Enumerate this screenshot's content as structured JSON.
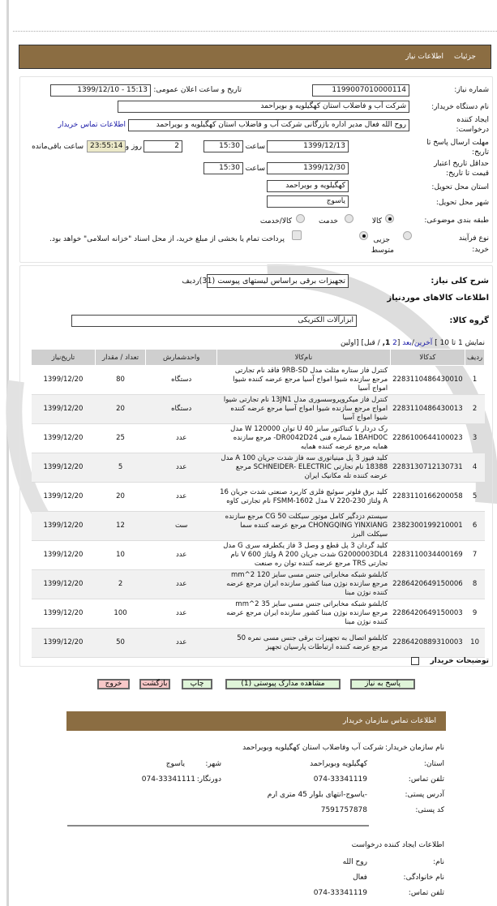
{
  "header": {
    "tab1": "جزئیات",
    "tab2": "اطلاعات نیاز"
  },
  "form": {
    "need_no_label": "شماره نیاز:",
    "need_no": "1199007010000114",
    "announce_label": "تاریخ و ساعت اعلان عمومی:",
    "announce": "1399/12/10 - 15:13",
    "buyer_label": "نام دستگاه خریدار:",
    "buyer": "شرکت آب و فاضلاب استان کهگیلویه و بویراحمد",
    "creator_label": "ایجاد کننده درخواست:",
    "creator": "روح الله فعال مدیر اداره بازرگانی شرکت آب و فاضلاب استان کهگیلویه و بویراحمد",
    "contact_link": "اطلاعات تماس خریدار",
    "deadline_label": "مهلت ارسال پاسخ تا تاریخ:",
    "deadline_date": "1399/12/13",
    "time_label": "ساعت",
    "deadline_time": "15:30",
    "days": "2",
    "days_label": "روز و",
    "remaining": "23:55:14",
    "remaining_label": "ساعت باقی‌مانده",
    "validity_label": "حداقل تاریخ اعتبار قیمت تا تاریخ:",
    "validity_date": "1399/12/30",
    "validity_time": "15:30",
    "province_label": "استان محل تحویل:",
    "province": "کهگیلویه و بویراحمد",
    "city_label": "شهر محل تحویل:",
    "city": "یاسوج",
    "category_label": "طبقه بندی موضوعی:",
    "cat_options": [
      "کالا",
      "خدمت",
      "کالا/خدمت"
    ],
    "cat_selected": "کالا",
    "process_label": "نوع فرآیند خرید:",
    "proc_options": [
      "جزیی",
      "متوسط"
    ],
    "proc_selected": "متوسط",
    "treasury_text": "پرداخت تمام یا بخشی از مبلغ خرید، از محل اسناد \"خزانه اسلامی\" خواهد بود."
  },
  "summary": {
    "label": "شرح کلی نیاز:",
    "value": "تجهیزات برقی براساس لیستهای پیوست (31)ردیف",
    "goods_title": "اطلاعات کالاهای موردنیاز",
    "group_label": "گروه کالا:",
    "group": "ابزارآلات الکتریکی"
  },
  "pagination": {
    "show": "نمایش 1 تا 10 ]",
    "last": "آخرین",
    "next": "بعد",
    "p2": "2",
    "p1": "1,",
    "rest": "/ قبل] [اولین"
  },
  "table": {
    "headers": [
      "ردیف",
      "کدکالا",
      "نام‌کالا",
      "واحدشمارش",
      "تعداد / مقدار",
      "تاریخ‌نیاز"
    ],
    "rows": [
      [
        "1",
        "2283110486430010",
        "کنترل فاز ستاره مثلث مدل 9RB-SD فاقد نام تجارتی مرجع سازنده شیوا امواج آسیا مرجع عرضه کننده شیوا امواج آسیا",
        "دستگاه",
        "80",
        "1399/12/20"
      ],
      [
        "2",
        "2283110486430013",
        "کنترل فاز میکروپروسسوری مدل 13JN1 نام تجارتی شیوا امواج مرجع سازنده شیوا امواج آسیا مرجع عرضه کننده شیوا امواج آسیا",
        "دستگاه",
        "20",
        "1399/12/20"
      ],
      [
        "3",
        "2286100644100023",
        "رک دردار با کنتاکتور سایز 40 U توان 120000 W مدل 1BAHD0C شماره فنی DR0042D24- مرجع سازنده همایه مرجع عرضه کننده همایه",
        "عدد",
        "25",
        "1399/12/20"
      ],
      [
        "4",
        "2283130712130731",
        "کلید فیوز 3 پل مینیاتوری سه فاز شدت جریان 100 A مدل 18388 نام تجارتی SCHNEIDER- ELECTRIC مرجع عرضه کننده تله مکانیک ایران",
        "عدد",
        "5",
        "1399/12/20"
      ],
      [
        "5",
        "2283110166200058",
        "کلید برق فلوتر سوئیچ فلزی کاربرد صنعتی شدت جریان 16 A ولتاژ 230-220 V مدل FSMM-1602 نام تجارتی کاوه",
        "عدد",
        "20",
        "1399/12/20"
      ],
      [
        "6",
        "2382300199210001",
        "سیستم دزدگیر کامل موتور سیکلت CG 50 مرجع سازنده CHONGQING YINXIANG مرجع عرضه کننده سما سیکلت البرز",
        "ست",
        "12",
        "1399/12/20"
      ],
      [
        "7",
        "2283110034400169",
        "کلید گردان 3 پل قطع و وصل 3 فاز یکطرفه سری G مدل G2000003DL4 شدت جریان 200 A ولتاژ 600 V نام تجارتی TRS مرجع عرضه کننده توان ره صنعت",
        "عدد",
        "10",
        "1399/12/20"
      ],
      [
        "8",
        "2286420649150006",
        "کابلشو شبکه مخابراتی جنس مسی سایز 120 mm^2 مرجع سازنده نوژن مبنا کشور سازنده ایران مرجع عرضه کننده نوژن مبنا",
        "عدد",
        "2",
        "1399/12/20"
      ],
      [
        "9",
        "2286420649150003",
        "کابلشو شبکه مخابراتی جنس مسی سایز 35 mm^2 مرجع سازنده نوژن مبنا کشور سازنده ایران مرجع عرضه کننده نوژن مبنا",
        "عدد",
        "100",
        "1399/12/20"
      ],
      [
        "10",
        "2286420889310003",
        "کابلشو اتصال به تجهیزات برقی جنس مسی نمره 50 مرجع عرضه کننده ارتباطات پارسیان تجهیز",
        "عدد",
        "50",
        "1399/12/20"
      ]
    ]
  },
  "notes_label": "توضیحات خریدار",
  "buttons": {
    "reply": "پاسخ به نیاز",
    "docs": "مشاهده مدارک پیوستی (1)",
    "print": "چاپ",
    "back": "بازگشت",
    "exit": "خروج"
  },
  "contact": {
    "title": "اطلاعات تماس سازمان خریدار",
    "org_label": "نام سازمان خریدار:",
    "org": "شرکت آب وفاضلاب استان کهگیلویه وبویراحمد",
    "province_label": "استان:",
    "province": "کهگیلویه وبویراحمد",
    "city_label": "شهر:",
    "city": "یاسوج",
    "phone_label": "تلفن تماس:",
    "phone": "074-33341119",
    "fax_label": "دورنگار:",
    "fax": "074-33341111",
    "address_label": "آدرس پستی:",
    "address": "-یاسوج-انتهای بلوار 45 متری ارم",
    "postal_label": "کد پستی:",
    "postal": "7591757878",
    "creator_title": "اطلاعات ایجاد کننده درخواست",
    "name_label": "نام:",
    "name": "روح الله",
    "family_label": "نام خانوادگی:",
    "family": "فعال",
    "cphone_label": "تلفن تماس:",
    "cphone": "074-33341119"
  },
  "colors": {
    "bar": "#8b6d42",
    "green_btn": "#dff5d8",
    "red_btn": "#f8c8c8",
    "remaining_bg": "#ece9c8"
  }
}
